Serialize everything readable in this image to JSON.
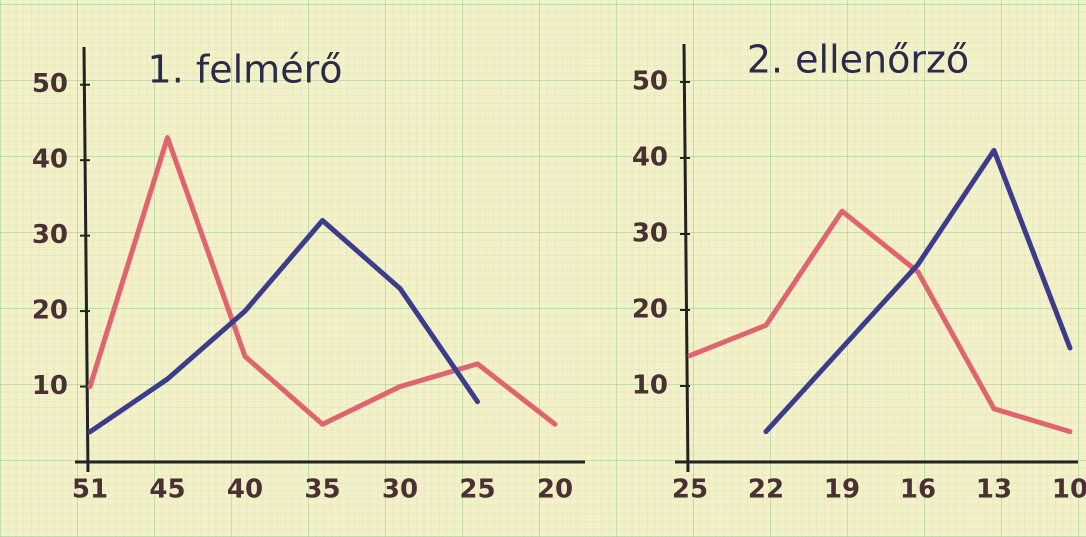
{
  "chart_data": [
    {
      "type": "line",
      "title": "1. felmérő",
      "categories": [
        "51",
        "45",
        "40",
        "35",
        "30",
        "25",
        "20"
      ],
      "series": [
        {
          "color": "#e0646e",
          "values": [
            10,
            43,
            14,
            5,
            10,
            13,
            5
          ]
        },
        {
          "color": "#3b3d8c",
          "values": [
            4,
            11,
            20,
            32,
            23,
            8,
            null
          ]
        }
      ],
      "ylim": [
        0,
        55
      ],
      "yticks": [
        10,
        20,
        30,
        40,
        50
      ]
    },
    {
      "type": "line",
      "title": "2. ellenőrző",
      "categories": [
        "25",
        "22",
        "19",
        "16",
        "13",
        "10"
      ],
      "series": [
        {
          "color": "#e0646e",
          "values": [
            14,
            18,
            33,
            25,
            7,
            4
          ]
        },
        {
          "color": "#3b3d8c",
          "values": [
            null,
            4,
            15,
            26,
            41,
            15
          ]
        }
      ],
      "ylim": [
        0,
        55
      ],
      "yticks": [
        10,
        20,
        30,
        40,
        50
      ]
    }
  ]
}
